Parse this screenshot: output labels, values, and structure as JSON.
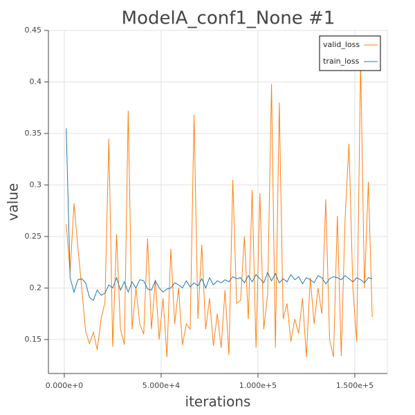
{
  "chart_data": {
    "type": "line",
    "title": "ModelA_conf1_None #1",
    "x_label": "iterations",
    "y_label": "value",
    "x": [
      1000,
      3000,
      5000,
      7000,
      9000,
      11000,
      13000,
      15000,
      17000,
      19000,
      21000,
      23000,
      25000,
      27000,
      29000,
      31000,
      33000,
      35000,
      37000,
      39000,
      41000,
      43000,
      45000,
      47000,
      49000,
      51000,
      53000,
      55000,
      57000,
      59000,
      61000,
      63000,
      65000,
      67000,
      69000,
      71000,
      73000,
      75000,
      77000,
      79000,
      81000,
      83000,
      85000,
      87000,
      89000,
      91000,
      93000,
      95000,
      97000,
      99000,
      101000,
      103000,
      105000,
      107000,
      109000,
      111000,
      113000,
      115000,
      117000,
      119000,
      121000,
      123000,
      125000,
      127000,
      129000,
      131000,
      133000,
      135000,
      137000,
      139000,
      141000,
      143000,
      145000,
      147000,
      149000,
      151000,
      153000,
      155000,
      157000,
      159000
    ],
    "series": [
      {
        "name": "valid_loss",
        "color": "#ff7f0e",
        "values": [
          0.262,
          0.215,
          0.282,
          0.24,
          0.2,
          0.158,
          0.146,
          0.157,
          0.14,
          0.17,
          0.186,
          0.345,
          0.143,
          0.252,
          0.16,
          0.145,
          0.372,
          0.16,
          0.2,
          0.165,
          0.155,
          0.248,
          0.16,
          0.208,
          0.15,
          0.19,
          0.133,
          0.238,
          0.165,
          0.2,
          0.145,
          0.165,
          0.16,
          0.368,
          0.17,
          0.242,
          0.16,
          0.19,
          0.144,
          0.175,
          0.142,
          0.198,
          0.135,
          0.305,
          0.185,
          0.188,
          0.25,
          0.17,
          0.295,
          0.142,
          0.292,
          0.16,
          0.194,
          0.398,
          0.142,
          0.38,
          0.17,
          0.185,
          0.148,
          0.17,
          0.156,
          0.19,
          0.133,
          0.21,
          0.165,
          0.2,
          0.175,
          0.286,
          0.15,
          0.133,
          0.27,
          0.134,
          0.268,
          0.34,
          0.2,
          0.148,
          0.42,
          0.2,
          0.303,
          0.172
        ]
      },
      {
        "name": "train_loss",
        "color": "#1f77b4",
        "values": [
          0.355,
          0.21,
          0.196,
          0.208,
          0.209,
          0.205,
          0.191,
          0.188,
          0.198,
          0.193,
          0.195,
          0.203,
          0.2,
          0.21,
          0.198,
          0.206,
          0.196,
          0.206,
          0.2,
          0.208,
          0.207,
          0.199,
          0.198,
          0.207,
          0.2,
          0.196,
          0.199,
          0.2,
          0.205,
          0.203,
          0.2,
          0.207,
          0.201,
          0.205,
          0.202,
          0.209,
          0.2,
          0.21,
          0.203,
          0.207,
          0.205,
          0.208,
          0.206,
          0.211,
          0.209,
          0.21,
          0.205,
          0.212,
          0.206,
          0.213,
          0.209,
          0.205,
          0.215,
          0.207,
          0.214,
          0.205,
          0.209,
          0.206,
          0.213,
          0.208,
          0.211,
          0.204,
          0.21,
          0.208,
          0.205,
          0.212,
          0.21,
          0.204,
          0.209,
          0.211,
          0.21,
          0.208,
          0.212,
          0.209,
          0.206,
          0.21,
          0.208,
          0.205,
          0.21,
          0.209
        ]
      }
    ],
    "xlim": [
      -8200,
      166800
    ],
    "ylim": [
      0.117,
      0.45
    ],
    "xticks": [
      {
        "value": 0,
        "label": "0.000e+0"
      },
      {
        "value": 50000,
        "label": "5.000e+4"
      },
      {
        "value": 100000,
        "label": "1.000e+5"
      },
      {
        "value": 150000,
        "label": "1.500e+5"
      }
    ],
    "yticks": [
      0.15,
      0.2,
      0.25,
      0.3,
      0.35,
      0.4,
      0.45
    ],
    "grid": true,
    "legend": "top-right"
  }
}
